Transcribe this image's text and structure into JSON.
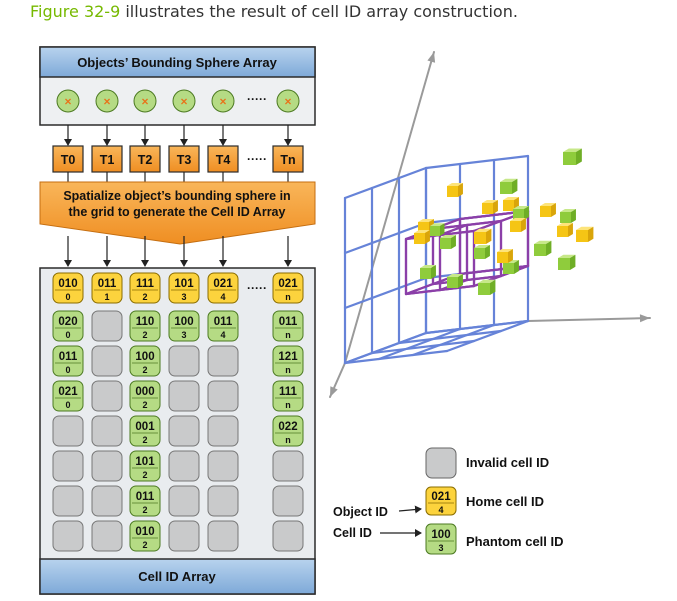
{
  "caption": {
    "link": "Figure 32-9",
    "rest": " illustrates the result of cell ID array construction."
  },
  "left": {
    "sphere_array_title": "Objects’ Bounding Sphere Array",
    "sphere_mark": "×",
    "dots": "·····",
    "threads": [
      "T0",
      "T1",
      "T2",
      "T3",
      "T4",
      "Tn"
    ],
    "spatialize_line1": "Spatialize object’s bounding sphere in",
    "spatialize_line2": "the grid to generate the Cell ID Array",
    "cell_array_title": "Cell ID Array",
    "columns": [
      {
        "home": {
          "id": "010",
          "obj": "0"
        },
        "phantoms": [
          {
            "id": "020",
            "obj": "0"
          },
          {
            "id": "011",
            "obj": "0"
          },
          {
            "id": "021",
            "obj": "0"
          }
        ]
      },
      {
        "home": {
          "id": "011",
          "obj": "1"
        },
        "phantoms": []
      },
      {
        "home": {
          "id": "111",
          "obj": "2"
        },
        "phantoms": [
          {
            "id": "110",
            "obj": "2"
          },
          {
            "id": "100",
            "obj": "2"
          },
          {
            "id": "000",
            "obj": "2"
          },
          {
            "id": "001",
            "obj": "2"
          },
          {
            "id": "101",
            "obj": "2"
          },
          {
            "id": "011",
            "obj": "2"
          },
          {
            "id": "010",
            "obj": "2"
          }
        ]
      },
      {
        "home": {
          "id": "101",
          "obj": "3"
        },
        "phantoms": [
          {
            "id": "100",
            "obj": "3"
          }
        ]
      },
      {
        "home": {
          "id": "021",
          "obj": "4"
        },
        "phantoms": [
          {
            "id": "011",
            "obj": "4"
          }
        ]
      },
      {
        "home": {
          "id": "021",
          "obj": "n"
        },
        "phantoms": [
          {
            "id": "011",
            "obj": "n"
          },
          {
            "id": "121",
            "obj": "n"
          },
          {
            "id": "111",
            "obj": "n"
          },
          {
            "id": "022",
            "obj": "n"
          }
        ]
      }
    ]
  },
  "legend": {
    "invalid": "Invalid cell ID",
    "home": "Home cell ID",
    "phantom": "Phantom cell ID",
    "object_id_label": "Object ID",
    "cell_id_label": "Cell ID",
    "home_example": {
      "id": "021",
      "obj": "4"
    },
    "phantom_example": {
      "id": "100",
      "obj": "3"
    }
  },
  "colors": {
    "caption_link": "#76b900",
    "header_blue": "#8ab4df",
    "panel_bg": "#e9ecef",
    "orange": "#f49a32",
    "home_yellow": "#fcd33d",
    "phantom_green": "#b5db84",
    "invalid_gray": "#c9cacb",
    "grid_blue": "#5f7fd8",
    "cube_purple": "#8b3fa8"
  }
}
